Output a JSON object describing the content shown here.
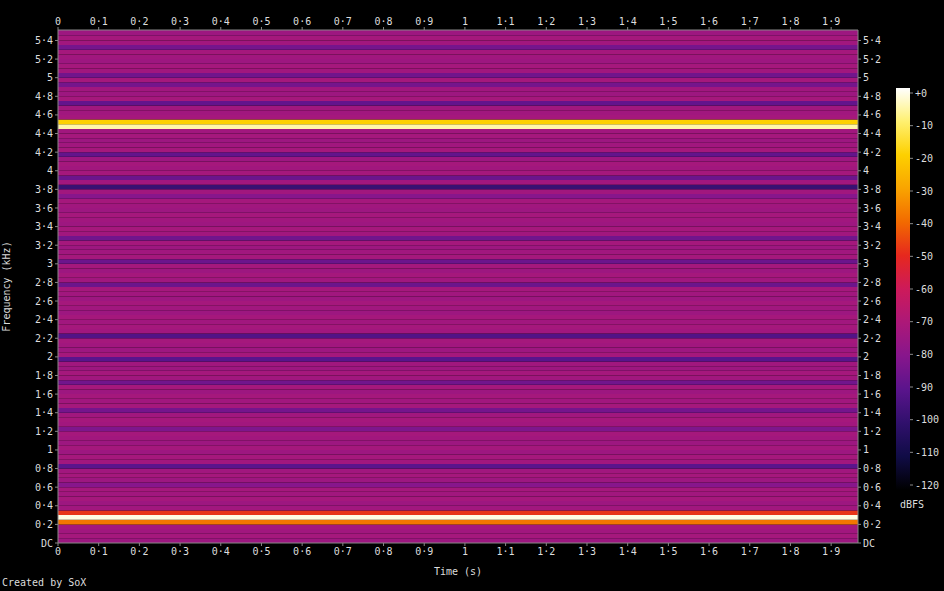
{
  "chart_data": {
    "type": "heatmap",
    "x_label": "Time (s)",
    "y_label": "Frequency (kHz)",
    "annotation": "Created by SoX",
    "xlim": [
      0,
      1.966
    ],
    "xticks": [
      0,
      {
        "value": 0.1,
        "label": "0·1"
      },
      {
        "value": 0.2,
        "label": "0·2"
      },
      {
        "value": 0.3,
        "label": "0·3"
      },
      {
        "value": 0.4,
        "label": "0·4"
      },
      {
        "value": 0.5,
        "label": "0·5"
      },
      {
        "value": 0.6,
        "label": "0·6"
      },
      {
        "value": 0.7,
        "label": "0·7"
      },
      {
        "value": 0.8,
        "label": "0·8"
      },
      {
        "value": 0.9,
        "label": "0·9"
      },
      1,
      {
        "value": 1.1,
        "label": "1·1"
      },
      {
        "value": 1.2,
        "label": "1·2"
      },
      {
        "value": 1.3,
        "label": "1·3"
      },
      {
        "value": 1.4,
        "label": "1·4"
      },
      {
        "value": 1.5,
        "label": "1·5"
      },
      {
        "value": 1.6,
        "label": "1·6"
      },
      {
        "value": 1.7,
        "label": "1·7"
      },
      {
        "value": 1.8,
        "label": "1·8"
      },
      {
        "value": 1.9,
        "label": "1·9"
      }
    ],
    "ylim": [
      0,
      5.5125
    ],
    "yticks": [
      {
        "value": 0,
        "label": "DC"
      },
      {
        "value": 0.2,
        "label": "0·2"
      },
      {
        "value": 0.4,
        "label": "0·4"
      },
      {
        "value": 0.6,
        "label": "0·6"
      },
      {
        "value": 0.8,
        "label": "0·8"
      },
      1,
      {
        "value": 1.2,
        "label": "1·2"
      },
      {
        "value": 1.4,
        "label": "1·4"
      },
      {
        "value": 1.6,
        "label": "1·6"
      },
      {
        "value": 1.8,
        "label": "1·8"
      },
      2,
      {
        "value": 2.2,
        "label": "2·2"
      },
      {
        "value": 2.4,
        "label": "2·4"
      },
      {
        "value": 2.6,
        "label": "2·6"
      },
      {
        "value": 2.8,
        "label": "2·8"
      },
      3,
      {
        "value": 3.2,
        "label": "3·2"
      },
      {
        "value": 3.4,
        "label": "3·4"
      },
      {
        "value": 3.6,
        "label": "3·6"
      },
      {
        "value": 3.8,
        "label": "3·8"
      },
      4,
      {
        "value": 4.2,
        "label": "4·2"
      },
      {
        "value": 4.4,
        "label": "4·4"
      },
      {
        "value": 4.6,
        "label": "4·6"
      },
      {
        "value": 4.8,
        "label": "4·8"
      },
      5,
      {
        "value": 5.2,
        "label": "5·2"
      },
      {
        "value": 5.4,
        "label": "5·4"
      }
    ],
    "freq_bins": [
      0,
      0.05,
      0.1,
      0.15,
      0.2,
      0.25,
      0.3,
      0.35,
      0.4,
      0.45,
      0.5,
      0.55,
      0.6,
      0.65,
      0.7,
      0.75,
      0.8,
      0.85,
      0.9,
      0.95,
      1,
      1.05,
      1.1,
      1.15,
      1.2,
      1.25,
      1.3,
      1.35,
      1.4,
      1.45,
      1.5,
      1.55,
      1.6,
      1.65,
      1.7,
      1.75,
      1.8,
      1.85,
      1.9,
      1.95,
      2,
      2.05,
      2.1,
      2.15,
      2.2,
      2.25,
      2.3,
      2.35,
      2.4,
      2.45,
      2.5,
      2.55,
      2.6,
      2.65,
      2.7,
      2.75,
      2.8,
      2.85,
      2.9,
      2.95,
      3,
      3.05,
      3.1,
      3.15,
      3.2,
      3.25,
      3.3,
      3.35,
      3.4,
      3.45,
      3.5,
      3.55,
      3.6,
      3.65,
      3.7,
      3.75,
      3.8,
      3.85,
      3.9,
      3.95,
      4,
      4.05,
      4.1,
      4.15,
      4.2,
      4.25,
      4.3,
      4.35,
      4.4,
      4.45,
      4.5,
      4.55,
      4.6,
      4.65,
      4.7,
      4.75,
      4.8,
      4.85,
      4.9,
      4.95,
      5,
      5.05,
      5.1,
      5.15,
      5.2,
      5.25,
      5.3,
      5.35,
      5.4,
      5.45,
      5.5125
    ],
    "levels": [
      -74,
      -72,
      -73,
      -72,
      -38,
      -2,
      -48,
      -73,
      -74,
      -72,
      -73,
      -72,
      -80,
      -74,
      -72,
      -73,
      -90,
      -73,
      -72,
      -74,
      -72,
      -74,
      -73,
      -72,
      -82,
      -73,
      -72,
      -73,
      -84,
      -72,
      -73,
      -72,
      -74,
      -72,
      -85,
      -73,
      -72,
      -74,
      -73,
      -90,
      -72,
      -74,
      -73,
      -72,
      -92,
      -73,
      -72,
      -73,
      -72,
      -74,
      -73,
      -72,
      -74,
      -73,
      -72,
      -86,
      -73,
      -72,
      -74,
      -72,
      -86,
      -72,
      -73,
      -74,
      -72,
      -85,
      -73,
      -72,
      -74,
      -73,
      -72,
      -74,
      -73,
      -72,
      -80,
      -73,
      -98,
      -73,
      -86,
      -72,
      -73,
      -72,
      -74,
      -88,
      -72,
      -73,
      -74,
      -72,
      -73,
      -6,
      -20,
      -72,
      -73,
      -73,
      -88,
      -72,
      -74,
      -73,
      -84,
      -72,
      -85,
      -73,
      -72,
      -74,
      -73,
      -72,
      -84,
      -73,
      -72,
      -74
    ],
    "colorbar": {
      "label": "dBFS",
      "range": [
        -120,
        0
      ],
      "ticks": [
        {
          "value": 0,
          "label": "+0"
        },
        -10,
        -20,
        -30,
        -40,
        -50,
        -60,
        -70,
        -80,
        -90,
        -100,
        -110,
        -120
      ]
    }
  }
}
